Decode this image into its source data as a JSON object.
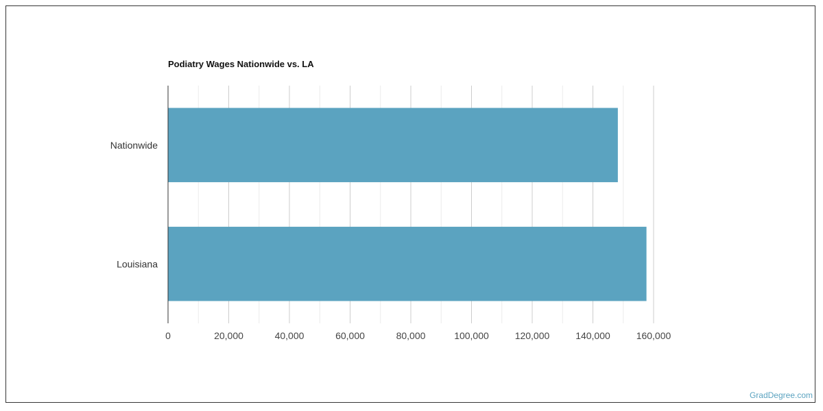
{
  "chart_data": {
    "type": "bar",
    "orientation": "horizontal",
    "title": "Podiatry Wages Nationwide vs. LA",
    "categories": [
      "Nationwide",
      "Louisiana"
    ],
    "values": [
      148220,
      157650
    ],
    "xlim": [
      0,
      160000
    ],
    "x_ticks": [
      "0",
      "20,000",
      "40,000",
      "60,000",
      "80,000",
      "100,000",
      "120,000",
      "140,000",
      "160,000"
    ],
    "x_tick_values": [
      0,
      20000,
      40000,
      60000,
      80000,
      100000,
      120000,
      140000,
      160000
    ],
    "grid": true,
    "bar_color": "#5ba3c0"
  },
  "footer": {
    "watermark": "GradDegree.com"
  }
}
